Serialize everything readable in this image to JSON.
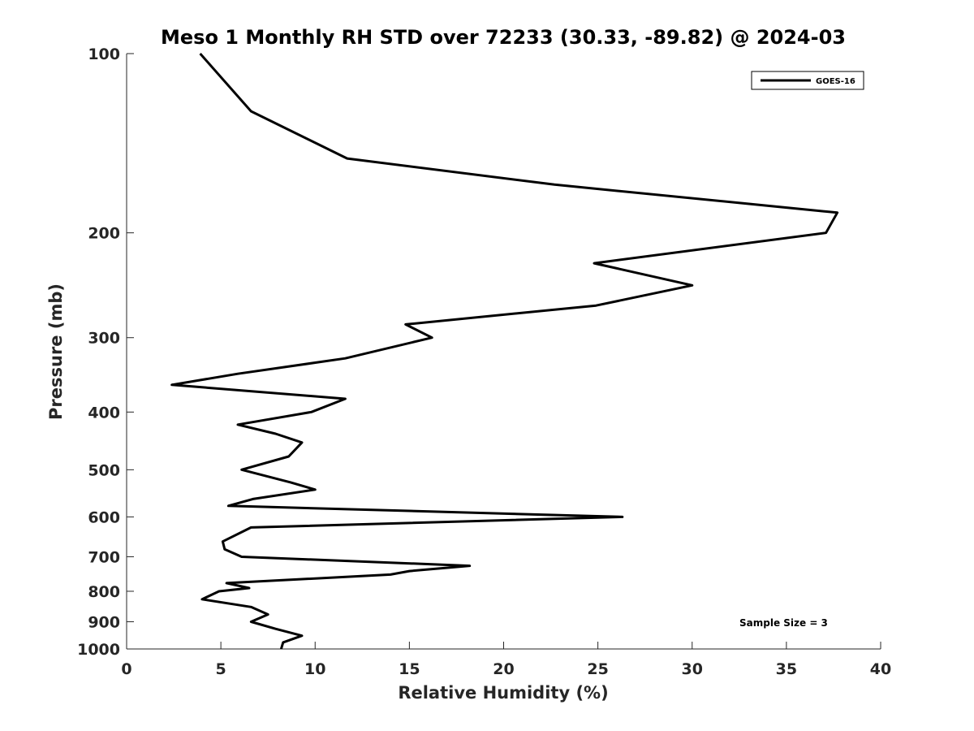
{
  "chart_data": {
    "type": "line",
    "title": "Meso 1 Monthly RH STD over 72233 (30.33, -89.82) @ 2024-03",
    "xlabel": "Relative Humidity (%)",
    "ylabel": "Pressure (mb)",
    "xlim": [
      0,
      40
    ],
    "ylim": [
      100,
      1000
    ],
    "y_scale": "log",
    "y_reversed": true,
    "x_ticks": [
      "0",
      "5",
      "10",
      "15",
      "20",
      "25",
      "30",
      "35",
      "40"
    ],
    "y_ticks": [
      "100",
      "200",
      "300",
      "400",
      "500",
      "600",
      "700",
      "800",
      "900",
      "1000"
    ],
    "grid": false,
    "legend": {
      "position": "top-right",
      "entries": [
        "GOES-16"
      ]
    },
    "annotation": "Sample Size = 3",
    "series": [
      {
        "name": "GOES-16",
        "color": "#000000",
        "points": [
          [
            8.2,
            1000
          ],
          [
            8.3,
            975
          ],
          [
            9.3,
            950
          ],
          [
            7.9,
            925
          ],
          [
            6.6,
            900
          ],
          [
            7.5,
            875
          ],
          [
            6.6,
            850
          ],
          [
            4.0,
            825
          ],
          [
            4.9,
            800
          ],
          [
            6.5,
            790
          ],
          [
            5.3,
            775
          ],
          [
            14.0,
            750
          ],
          [
            15.0,
            740
          ],
          [
            18.2,
            725
          ],
          [
            6.1,
            700
          ],
          [
            5.2,
            680
          ],
          [
            5.1,
            660
          ],
          [
            6.6,
            625
          ],
          [
            26.3,
            600
          ],
          [
            5.4,
            575
          ],
          [
            6.7,
            560
          ],
          [
            10.0,
            540
          ],
          [
            8.7,
            525
          ],
          [
            6.1,
            500
          ],
          [
            8.6,
            475
          ],
          [
            9.3,
            450
          ],
          [
            7.9,
            435
          ],
          [
            5.9,
            420
          ],
          [
            9.8,
            400
          ],
          [
            11.6,
            380
          ],
          [
            2.4,
            360
          ],
          [
            5.9,
            345
          ],
          [
            11.6,
            325
          ],
          [
            16.2,
            300
          ],
          [
            14.8,
            285
          ],
          [
            24.9,
            265
          ],
          [
            30.0,
            245
          ],
          [
            24.8,
            225
          ],
          [
            37.1,
            200
          ],
          [
            37.7,
            185
          ],
          [
            22.7,
            166
          ],
          [
            11.7,
            150
          ],
          [
            6.6,
            125
          ],
          [
            3.9,
            100
          ]
        ]
      }
    ]
  }
}
